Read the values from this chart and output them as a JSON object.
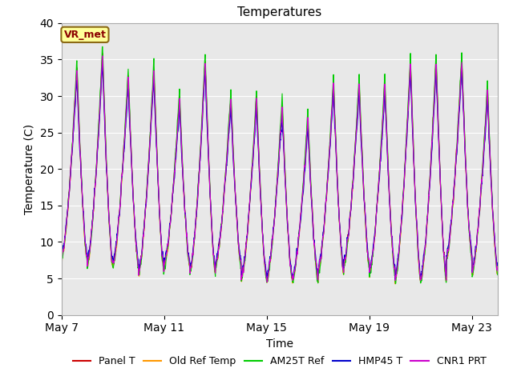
{
  "title": "Temperatures",
  "xlabel": "Time",
  "ylabel": "Temperature (C)",
  "ylim": [
    0,
    40
  ],
  "yticks": [
    0,
    5,
    10,
    15,
    20,
    25,
    30,
    35,
    40
  ],
  "xtick_labels": [
    "May 7",
    "May 11",
    "May 15",
    "May 19",
    "May 23"
  ],
  "xtick_positions": [
    0,
    4,
    8,
    12,
    16
  ],
  "annotation_text": "VR_met",
  "series_colors": [
    "#cc0000",
    "#ff9900",
    "#00cc00",
    "#0000cc",
    "#cc00cc"
  ],
  "series_labels": [
    "Panel T",
    "Old Ref Temp",
    "AM25T Ref",
    "HMP45 T",
    "CNR1 PRT"
  ],
  "n_days": 17,
  "fig_bg_color": "#ffffff",
  "plot_bg_color": "#e8e8e8",
  "grid_color": "#ffffff",
  "title_fontsize": 11,
  "axis_fontsize": 10,
  "legend_fontsize": 9,
  "day_maxs": [
    34,
    36,
    33,
    34,
    30,
    35,
    30,
    30,
    29,
    27,
    32,
    32,
    32,
    35,
    35,
    35,
    31
  ],
  "day_mins": [
    8,
    7,
    7,
    6,
    7,
    6,
    7,
    5,
    5,
    5,
    6,
    7,
    6,
    5,
    5,
    8,
    6
  ]
}
